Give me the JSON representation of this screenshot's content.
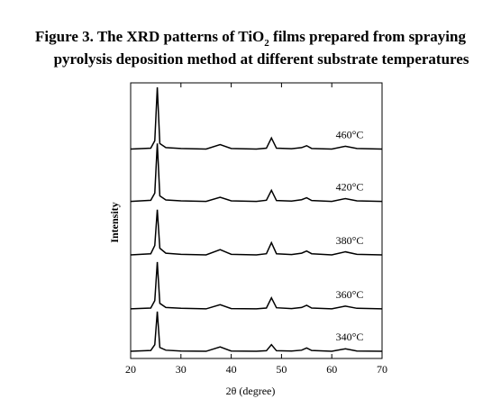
{
  "chart_data": {
    "type": "line",
    "title": {
      "before": "Figure 3. The XRD patterns of TiO",
      "subscript": "2",
      "after": " films prepared from spraying",
      "line2": "pyrolysis deposition method at different substrate temperatures"
    },
    "x_label": "2θ (degree)",
    "y_label": "Intensity",
    "xlim": [
      20,
      70
    ],
    "xticks": [
      20,
      30,
      40,
      50,
      60,
      70
    ],
    "ylim": [
      0,
      100
    ],
    "x": [
      20,
      24,
      24.8,
      25.3,
      25.8,
      27,
      30,
      35,
      37.8,
      40,
      45,
      47,
      48,
      49,
      52,
      54,
      55,
      56,
      60,
      62.7,
      65,
      70
    ],
    "series": [
      {
        "name": "340°C",
        "color": "#000000",
        "values": [
          2.6,
          2.9,
          5,
          17,
          4,
          3,
          2.7,
          2.6,
          4.2,
          2.7,
          2.6,
          2.8,
          5,
          2.8,
          2.7,
          3,
          3.8,
          2.9,
          2.6,
          3.5,
          2.7,
          2.6
        ]
      },
      {
        "name": "360°C",
        "color": "#000000",
        "values": [
          18,
          18.3,
          21,
          35,
          20,
          18.5,
          18.2,
          18,
          19.5,
          18.1,
          18,
          18.3,
          22,
          18.4,
          18.1,
          18.5,
          19.3,
          18.3,
          18,
          19,
          18.2,
          18
        ]
      },
      {
        "name": "380°C",
        "color": "#000000",
        "values": [
          37.6,
          38,
          41,
          54,
          40,
          38.2,
          37.8,
          37.6,
          39.5,
          37.8,
          37.6,
          38,
          42,
          38,
          37.7,
          38.2,
          39,
          38,
          37.6,
          38.7,
          37.8,
          37.6
        ]
      },
      {
        "name": "420°C",
        "color": "#000000",
        "values": [
          57,
          57.4,
          60,
          78,
          59,
          57.5,
          57.2,
          57,
          58.5,
          57.2,
          57,
          57.4,
          61,
          57.3,
          57.1,
          57.6,
          58.3,
          57.3,
          57,
          58,
          57.2,
          57
        ]
      },
      {
        "name": "460°C",
        "color": "#000000",
        "values": [
          76,
          76.3,
          79,
          98.4,
          78,
          76.5,
          76.2,
          76,
          77.6,
          76.2,
          76,
          76.3,
          80,
          76.3,
          76.1,
          76.5,
          77.2,
          76.2,
          76,
          77,
          76.2,
          76
        ]
      }
    ]
  }
}
